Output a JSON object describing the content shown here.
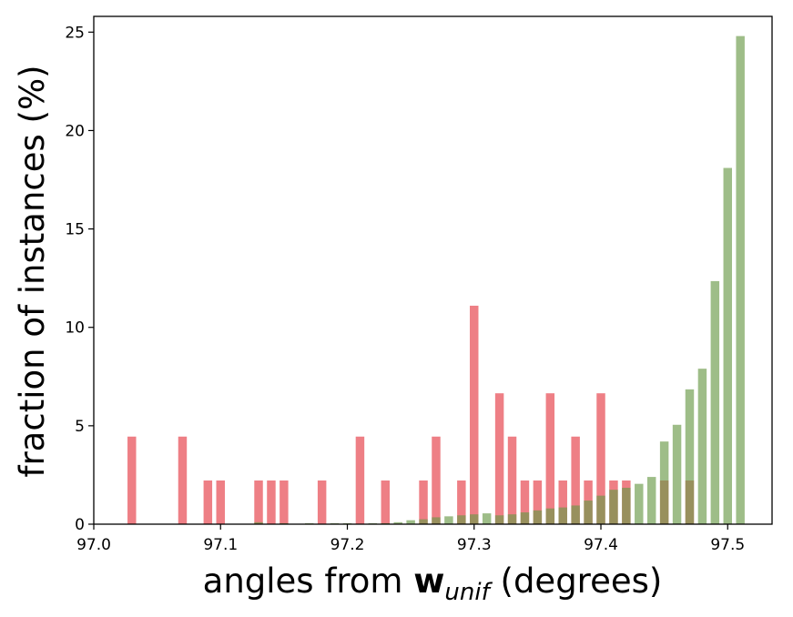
{
  "chart_data": {
    "type": "bar",
    "xlabel": {
      "prefix": "angles from ",
      "symbol": "w",
      "subscript": "unif",
      "suffix": " (degrees)"
    },
    "ylabel": "fraction of instances (%)",
    "xlim": [
      97.0,
      97.535
    ],
    "ylim": [
      0,
      25.8
    ],
    "xticks": [
      97.0,
      97.1,
      97.2,
      97.3,
      97.4,
      97.5
    ],
    "xtick_labels": [
      "97.0",
      "97.1",
      "97.2",
      "97.3",
      "97.4",
      "97.5"
    ],
    "yticks": [
      0,
      5,
      10,
      15,
      20,
      25
    ],
    "ytick_labels": [
      "0",
      "5",
      "10",
      "15",
      "20",
      "25"
    ],
    "bar_width": 0.0068,
    "series": [
      {
        "color": "#e8545c",
        "opacity": 0.75,
        "x": [
          97.03,
          97.07,
          97.09,
          97.1,
          97.13,
          97.14,
          97.15,
          97.18,
          97.21,
          97.23,
          97.26,
          97.27,
          97.29,
          97.3,
          97.32,
          97.33,
          97.34,
          97.35,
          97.36,
          97.37,
          97.38,
          97.39,
          97.4,
          97.41,
          97.42,
          97.45,
          97.47
        ],
        "values": [
          4.45,
          4.45,
          2.22,
          2.22,
          2.22,
          2.22,
          2.22,
          2.22,
          4.45,
          2.22,
          2.22,
          4.45,
          2.22,
          11.1,
          6.65,
          4.45,
          2.22,
          2.22,
          6.65,
          2.22,
          4.45,
          2.22,
          6.65,
          2.22,
          2.22,
          2.22,
          2.22
        ]
      },
      {
        "color": "#6a9a48",
        "opacity": 0.65,
        "x": [
          97.13,
          97.15,
          97.17,
          97.19,
          97.2,
          97.22,
          97.23,
          97.24,
          97.25,
          97.26,
          97.27,
          97.28,
          97.29,
          97.3,
          97.31,
          97.32,
          97.33,
          97.34,
          97.35,
          97.36,
          97.37,
          97.38,
          97.39,
          97.4,
          97.41,
          97.42,
          97.43,
          97.44,
          97.45,
          97.46,
          97.47,
          97.48,
          97.49,
          97.5,
          97.51
        ],
        "values": [
          0.1,
          0.05,
          0.05,
          0.05,
          0.05,
          0.05,
          0.05,
          0.1,
          0.2,
          0.25,
          0.35,
          0.4,
          0.45,
          0.5,
          0.55,
          0.45,
          0.5,
          0.6,
          0.7,
          0.8,
          0.85,
          0.95,
          1.2,
          1.45,
          1.75,
          1.85,
          2.05,
          2.4,
          4.2,
          5.05,
          6.85,
          7.9,
          12.35,
          18.1,
          24.8
        ]
      }
    ]
  }
}
